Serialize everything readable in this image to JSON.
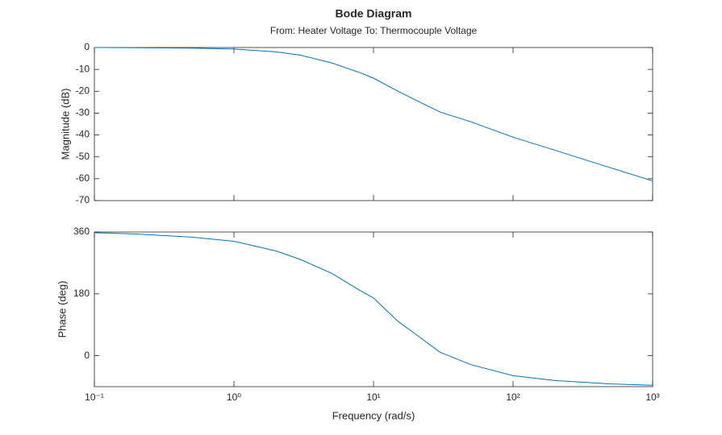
{
  "chart_data": [
    {
      "type": "line",
      "title": "Bode Diagram",
      "subtitle": "From: Heater Voltage  To: Thermocouple Voltage",
      "ylabel": "Magnitude (dB)",
      "log_x": true,
      "grid": false,
      "x": [
        0.1,
        0.2,
        0.5,
        1,
        2,
        3,
        5,
        8,
        10,
        15,
        20,
        30,
        50,
        100,
        200,
        500,
        1000
      ],
      "series": [
        {
          "name": "Magnitude",
          "color": "#0072bd",
          "values": [
            0,
            -0.1,
            -0.3,
            -0.7,
            -2,
            -3.5,
            -7,
            -11.5,
            -14,
            -20,
            -24,
            -29.5,
            -34,
            -41,
            -47,
            -55,
            -61
          ]
        }
      ],
      "xlim": [
        0.1,
        1000
      ],
      "ylim": [
        -70,
        0
      ],
      "yticks": [
        0,
        -10,
        -20,
        -30,
        -40,
        -50,
        -60,
        -70
      ]
    },
    {
      "type": "line",
      "xlabel": "Frequency (rad/s)",
      "ylabel": "Phase (deg)",
      "log_x": true,
      "grid": false,
      "x": [
        0.1,
        0.2,
        0.5,
        1,
        2,
        3,
        5,
        8,
        10,
        15,
        20,
        30,
        50,
        100,
        200,
        500,
        1000
      ],
      "series": [
        {
          "name": "Phase",
          "color": "#0072bd",
          "values": [
            358,
            354,
            345,
            333,
            305,
            280,
            240,
            190,
            168,
            100,
            63,
            10,
            -26,
            -58,
            -72,
            -82,
            -86
          ]
        }
      ],
      "xlim": [
        0.1,
        1000
      ],
      "ylim": [
        -90,
        360
      ],
      "yticks": [
        360,
        180,
        0
      ],
      "xticks": [
        {
          "value": 0.1,
          "label": "10⁻¹"
        },
        {
          "value": 1,
          "label": "10⁰"
        },
        {
          "value": 10,
          "label": "10¹"
        },
        {
          "value": 100,
          "label": "10²"
        },
        {
          "value": 1000,
          "label": "10³"
        }
      ]
    }
  ]
}
